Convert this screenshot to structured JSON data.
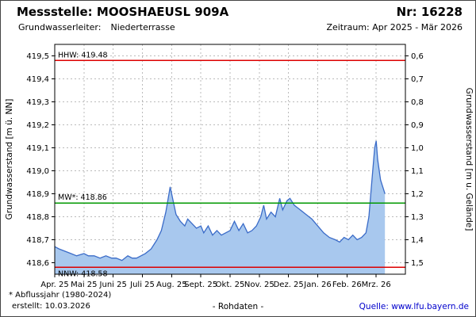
{
  "header": {
    "station_label": "Messstelle: MOOSHAEUSL 909A",
    "number_label": "Nr: 16228",
    "aquifer_label": "Grundwasserleiter:",
    "aquifer_value": "Niederterrasse",
    "period_label": "Zeitraum: Apr 2025 - Mär 2026"
  },
  "footer": {
    "note": "* Abflussjahr (1980-2024)",
    "created": "erstellt:  10.03.2026",
    "center": "- Rohdaten -",
    "source_label": "Quelle:",
    "source_link": "www.lfu.bayern.de"
  },
  "chart_data": {
    "type": "area",
    "title": "",
    "ylabel_left": "Grundwasserstand [m ü. NN]",
    "ylabel_right": "Grundwasserstand [m u. Gelände]",
    "ylim": [
      418.55,
      419.55
    ],
    "xlim_months": [
      0,
      12
    ],
    "grid": true,
    "x_tick_months": [
      0,
      1,
      2,
      3,
      4,
      5,
      6,
      7,
      8,
      9,
      10,
      11
    ],
    "x_tick_labels": [
      "Apr. 25",
      "Mai 25",
      "Juni 25",
      "Juli 25",
      "Aug. 25",
      "Sept. 25",
      "Okt. 25",
      "Nov. 25",
      "Dez. 25",
      "Jan. 26",
      "Feb. 26",
      "Mrz. 26"
    ],
    "y_left_tick_values": [
      419.5,
      419.4,
      419.3,
      419.2,
      419.1,
      419.0,
      418.9,
      418.8,
      418.7,
      418.6
    ],
    "y_left_tick_labels": [
      "419,5",
      "419,4",
      "419,3",
      "419,2",
      "419,1",
      "419,0",
      "418,9",
      "418,8",
      "418,7",
      "418,6"
    ],
    "y_right_tick_labels": [
      "0,6",
      "0,7",
      "0,8",
      "0,9",
      "1,0",
      "1,1",
      "1,2",
      "1,3",
      "1,4",
      "1,5"
    ],
    "reference_lines": [
      {
        "name": "HHW",
        "label": "HHW: 419.48",
        "value": 419.48,
        "color": "#dd0000",
        "label_pos": "above"
      },
      {
        "name": "MW",
        "label": "MW*: 418.86",
        "value": 418.86,
        "color": "#009900",
        "label_pos": "above"
      },
      {
        "name": "NNW",
        "label": "NNW: 418.58",
        "value": 418.58,
        "color": "#dd0000",
        "label_pos": "below"
      }
    ],
    "series": [
      {
        "name": "Grundwasserstand Rohdaten",
        "color": "#3a6bc8",
        "fill": "#a8c8ee",
        "x_months": [
          0.0,
          0.15,
          0.35,
          0.55,
          0.75,
          1.0,
          1.15,
          1.35,
          1.55,
          1.75,
          1.95,
          2.1,
          2.3,
          2.5,
          2.65,
          2.8,
          2.95,
          3.1,
          3.3,
          3.5,
          3.65,
          3.8,
          3.95,
          4.05,
          4.15,
          4.3,
          4.45,
          4.55,
          4.7,
          4.85,
          5.0,
          5.1,
          5.25,
          5.4,
          5.55,
          5.7,
          5.85,
          6.0,
          6.15,
          6.3,
          6.45,
          6.6,
          6.75,
          6.9,
          7.05,
          7.15,
          7.25,
          7.4,
          7.55,
          7.7,
          7.8,
          7.95,
          8.05,
          8.2,
          8.4,
          8.6,
          8.8,
          9.0,
          9.2,
          9.4,
          9.6,
          9.75,
          9.9,
          10.05,
          10.2,
          10.35,
          10.5,
          10.65,
          10.75,
          10.85,
          10.95,
          11.0,
          11.05,
          11.15,
          11.25,
          11.3
        ],
        "values": [
          418.67,
          418.66,
          418.65,
          418.64,
          418.63,
          418.64,
          418.63,
          418.63,
          418.62,
          418.63,
          418.62,
          418.62,
          418.61,
          418.63,
          418.62,
          418.62,
          418.63,
          418.64,
          418.66,
          418.7,
          418.74,
          418.82,
          418.93,
          418.87,
          418.81,
          418.78,
          418.76,
          418.79,
          418.77,
          418.75,
          418.76,
          418.73,
          418.76,
          418.72,
          418.74,
          418.72,
          418.73,
          418.74,
          418.78,
          418.74,
          418.77,
          418.73,
          418.74,
          418.76,
          418.8,
          418.85,
          418.79,
          418.82,
          418.8,
          418.88,
          418.83,
          418.87,
          418.88,
          418.85,
          418.83,
          418.81,
          418.79,
          418.76,
          418.73,
          418.71,
          418.7,
          418.69,
          418.71,
          418.7,
          418.72,
          418.7,
          418.71,
          418.73,
          418.8,
          418.95,
          419.1,
          419.13,
          419.05,
          418.96,
          418.92,
          418.9
        ]
      }
    ]
  },
  "colors": {
    "grid": "#bbbbbb",
    "frame": "#000000",
    "link": "#0000cc"
  }
}
